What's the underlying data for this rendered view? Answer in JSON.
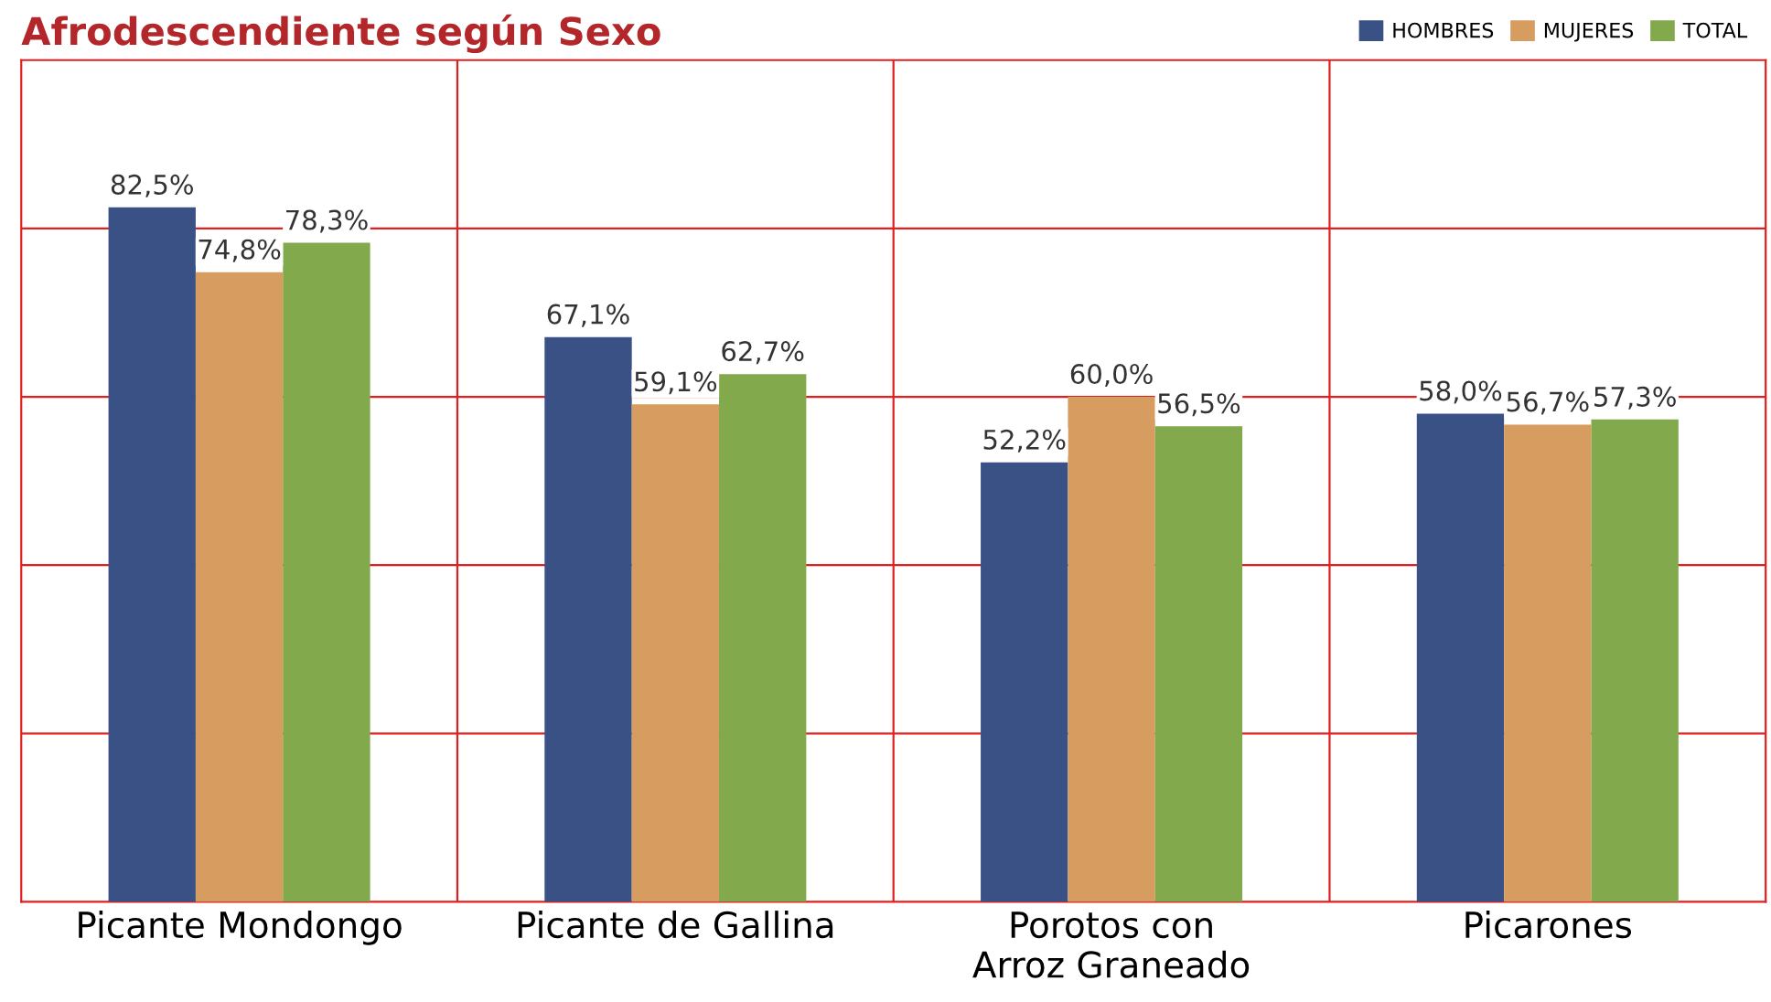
{
  "chart_data": {
    "type": "bar",
    "title": "Afrodescendiente según Sexo",
    "categories": [
      "Picante Mondongo",
      "Picante de Gallina",
      "Porotos con\nArroz Graneado",
      "Picarones"
    ],
    "series": [
      {
        "name": "HOMBRES",
        "color": "#3a5185",
        "values": [
          82.5,
          67.1,
          52.2,
          58.0
        ],
        "value_labels": [
          "82,5%",
          "67,1%",
          "52,2%",
          "58,0%"
        ]
      },
      {
        "name": "MUJERES",
        "color": "#d79c5f",
        "values": [
          74.8,
          59.1,
          60.0,
          56.7
        ],
        "value_labels": [
          "74,8%",
          "59,1%",
          "60,0%",
          "56,7%"
        ]
      },
      {
        "name": "TOTAL",
        "color": "#82a94c",
        "values": [
          78.3,
          62.7,
          56.5,
          57.3
        ],
        "value_labels": [
          "78,3%",
          "62,7%",
          "56,5%",
          "57,3%"
        ]
      }
    ],
    "ylim": [
      0,
      100
    ],
    "yticks": [
      {
        "value": 20,
        "label": null
      },
      {
        "value": 40,
        "label": null
      },
      {
        "value": 60,
        "label": null
      },
      {
        "value": 80,
        "label": null
      }
    ],
    "grid": true,
    "legend": "top right",
    "tick_labels": "x"
  }
}
